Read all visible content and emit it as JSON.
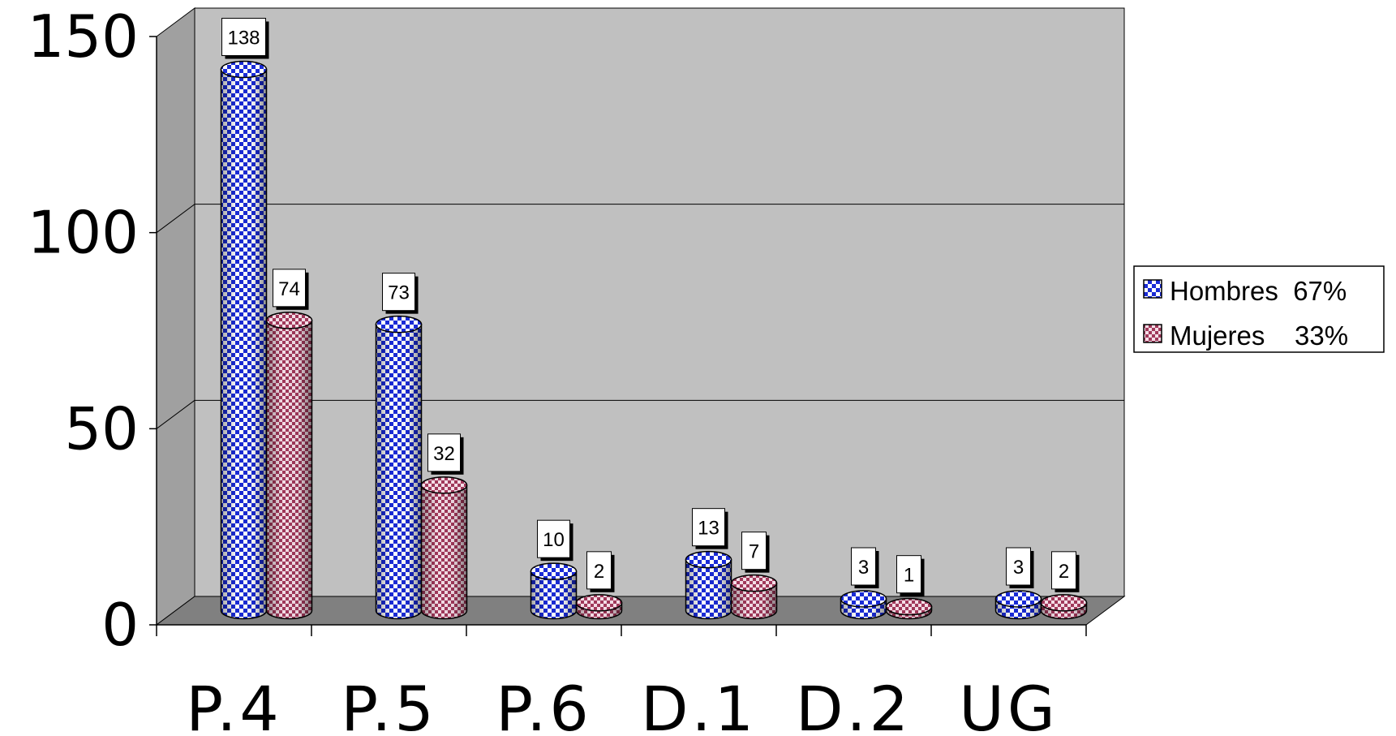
{
  "chart_data": {
    "type": "bar",
    "subtype": "3d-cylinder-clustered",
    "title": "",
    "xlabel": "",
    "ylabel": "",
    "categories": [
      "P.4",
      "P.5",
      "P.6",
      "D.1",
      "D.2",
      "UG"
    ],
    "series": [
      {
        "name": "Hombres",
        "legend_label": "Hombres  67%",
        "values": [
          138,
          73,
          10,
          13,
          3,
          3
        ],
        "color": "#1a2bd6",
        "pattern": "checkerboard"
      },
      {
        "name": "Mujeres",
        "legend_label": "Mujeres    33%",
        "values": [
          74,
          32,
          2,
          7,
          1,
          2
        ],
        "color": "#a0385a",
        "pattern": "checkerboard"
      }
    ],
    "ylim": [
      0,
      150
    ],
    "yticks": [
      0,
      50,
      100,
      150
    ],
    "ytick_labels": [
      "0",
      "50",
      "100",
      "150"
    ],
    "grid": true,
    "legend": "right",
    "data_labels": true,
    "colors": {
      "wall": "#c0c0c0",
      "floor": "#808080",
      "gridline": "#000000"
    }
  }
}
